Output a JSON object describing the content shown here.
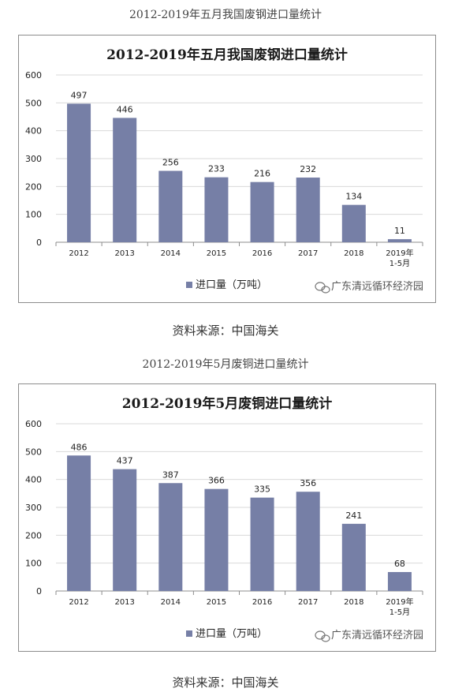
{
  "captions": {
    "top": "2012-2019年五月我国废钢进口量统计",
    "middle": "2012-2019年5月废铜进口量统计"
  },
  "sources": {
    "first": "资料来源：中国海关",
    "second": "资料来源：中国海关"
  },
  "watermark": "广东清远循环经济园",
  "colors": {
    "bar": "#767fa6",
    "grid": "#d9d9d9",
    "axis": "#8c8c8c"
  },
  "chart_data": [
    {
      "type": "bar",
      "title": "2012-2019年五月我国废钢进口量统计",
      "categories": [
        "2012",
        "2013",
        "2014",
        "2015",
        "2016",
        "2017",
        "2018",
        "2019年 1-5月"
      ],
      "category_lines": [
        [
          "2012"
        ],
        [
          "2013"
        ],
        [
          "2014"
        ],
        [
          "2015"
        ],
        [
          "2016"
        ],
        [
          "2017"
        ],
        [
          "2018"
        ],
        [
          "2019年",
          "1-5月"
        ]
      ],
      "series": [
        {
          "name": "进口量（万吨）",
          "values": [
            497,
            446,
            256,
            233,
            216,
            232,
            134,
            11
          ]
        }
      ],
      "ylim": [
        0,
        600
      ],
      "yticks": [
        0,
        100,
        200,
        300,
        400,
        500,
        600
      ],
      "grid": true,
      "legend": "bottom-center"
    },
    {
      "type": "bar",
      "title": "2012-2019年5月废铜进口量统计",
      "categories": [
        "2012",
        "2013",
        "2014",
        "2015",
        "2016",
        "2017",
        "2018",
        "2019年 1-5月"
      ],
      "category_lines": [
        [
          "2012"
        ],
        [
          "2013"
        ],
        [
          "2014"
        ],
        [
          "2015"
        ],
        [
          "2016"
        ],
        [
          "2017"
        ],
        [
          "2018"
        ],
        [
          "2019年",
          "1-5月"
        ]
      ],
      "series": [
        {
          "name": "进口量（万吨）",
          "values": [
            486,
            437,
            387,
            366,
            335,
            356,
            241,
            68
          ]
        }
      ],
      "ylim": [
        0,
        600
      ],
      "yticks": [
        0,
        100,
        200,
        300,
        400,
        500,
        600
      ],
      "grid": true,
      "legend": "bottom-center"
    }
  ]
}
